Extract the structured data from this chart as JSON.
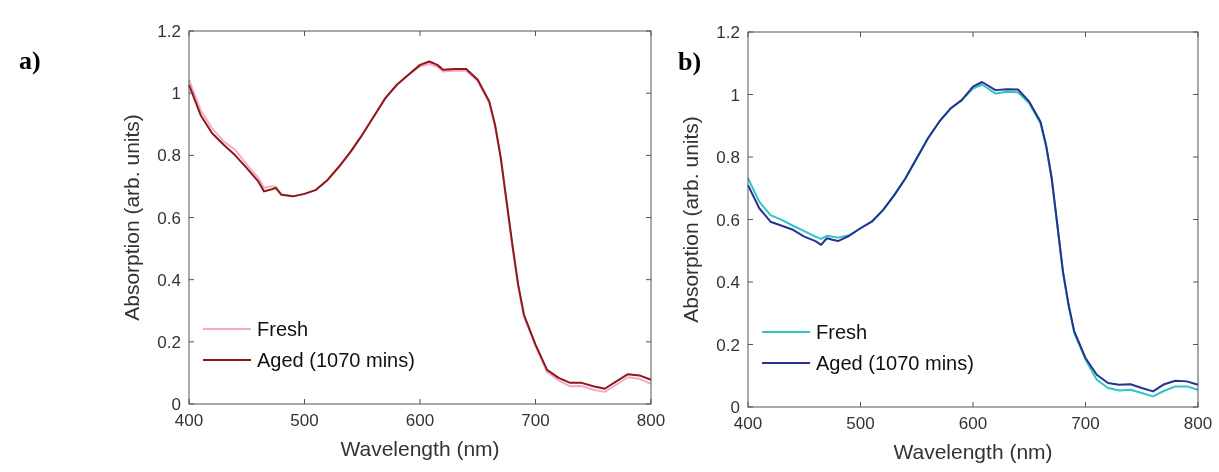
{
  "chart_data": [
    {
      "type": "line",
      "annotations": [
        "a)"
      ],
      "xlabel": "Wavelength (nm)",
      "ylabel": "Absorption (arb. units)",
      "xlim": [
        400,
        800
      ],
      "ylim": [
        0,
        1.2
      ],
      "xticks": [
        400,
        500,
        600,
        700,
        800
      ],
      "yticks": [
        0,
        0.2,
        0.4,
        0.6,
        0.8,
        1,
        1.2
      ],
      "grid": false,
      "legend": "bottom left",
      "line_style": "solid",
      "marker": "none",
      "x": [
        400,
        410,
        420,
        430,
        440,
        450,
        460,
        465,
        470,
        475,
        480,
        490,
        500,
        510,
        520,
        530,
        540,
        550,
        560,
        570,
        580,
        590,
        600,
        608,
        615,
        620,
        630,
        640,
        650,
        660,
        665,
        670,
        675,
        680,
        685,
        690,
        700,
        710,
        720,
        730,
        740,
        750,
        760,
        770,
        780,
        790,
        800
      ],
      "series": [
        {
          "name": "Fresh",
          "color": "#f7a8c4",
          "values": [
            1.043,
            0.946,
            0.887,
            0.845,
            0.818,
            0.77,
            0.727,
            0.695,
            0.7,
            0.7,
            0.675,
            0.668,
            0.676,
            0.689,
            0.721,
            0.764,
            0.812,
            0.866,
            0.925,
            0.984,
            1.027,
            1.059,
            1.086,
            1.094,
            1.085,
            1.07,
            1.072,
            1.072,
            1.038,
            0.968,
            0.893,
            0.786,
            0.646,
            0.507,
            0.379,
            0.282,
            0.186,
            0.103,
            0.076,
            0.057,
            0.058,
            0.046,
            0.039,
            0.062,
            0.086,
            0.081,
            0.065
          ]
        },
        {
          "name": "Aged (1070 mins)",
          "color": "#8b1a1a",
          "values": [
            1.027,
            0.93,
            0.871,
            0.834,
            0.8,
            0.759,
            0.716,
            0.684,
            0.689,
            0.695,
            0.673,
            0.668,
            0.676,
            0.689,
            0.721,
            0.764,
            0.812,
            0.866,
            0.925,
            0.984,
            1.027,
            1.059,
            1.091,
            1.102,
            1.091,
            1.075,
            1.078,
            1.078,
            1.043,
            0.973,
            0.898,
            0.791,
            0.651,
            0.512,
            0.384,
            0.287,
            0.191,
            0.11,
            0.084,
            0.068,
            0.068,
            0.057,
            0.049,
            0.073,
            0.096,
            0.092,
            0.078
          ]
        }
      ]
    },
    {
      "type": "line",
      "annotations": [
        "b)"
      ],
      "xlabel": "Wavelength (nm)",
      "ylabel": "Absorption (arb. units)",
      "xlim": [
        400,
        800
      ],
      "ylim": [
        0,
        1.2
      ],
      "xticks": [
        400,
        500,
        600,
        700,
        800
      ],
      "yticks": [
        0,
        0.2,
        0.4,
        0.6,
        0.8,
        1,
        1.2
      ],
      "grid": false,
      "legend": "bottom left",
      "line_style": "solid",
      "marker": "none",
      "x": [
        400,
        410,
        420,
        430,
        440,
        450,
        460,
        465,
        470,
        475,
        480,
        490,
        500,
        510,
        520,
        530,
        540,
        550,
        560,
        570,
        580,
        590,
        600,
        608,
        620,
        630,
        640,
        650,
        660,
        665,
        670,
        675,
        680,
        685,
        690,
        700,
        710,
        720,
        730,
        740,
        750,
        760,
        770,
        780,
        790,
        800
      ],
      "series": [
        {
          "name": "Fresh",
          "color": "#2ec4c9",
          "values": [
            0.732,
            0.657,
            0.614,
            0.599,
            0.58,
            0.563,
            0.545,
            0.538,
            0.548,
            0.545,
            0.542,
            0.55,
            0.572,
            0.593,
            0.63,
            0.678,
            0.732,
            0.796,
            0.86,
            0.913,
            0.955,
            0.982,
            1.019,
            1.032,
            1.003,
            1.009,
            1.007,
            0.972,
            0.908,
            0.833,
            0.727,
            0.578,
            0.428,
            0.322,
            0.237,
            0.152,
            0.087,
            0.061,
            0.053,
            0.055,
            0.045,
            0.034,
            0.052,
            0.066,
            0.066,
            0.055
          ]
        },
        {
          "name": "Aged (1070 mins)",
          "color": "#27318f",
          "values": [
            0.71,
            0.636,
            0.593,
            0.58,
            0.567,
            0.545,
            0.531,
            0.519,
            0.54,
            0.535,
            0.531,
            0.548,
            0.572,
            0.593,
            0.63,
            0.678,
            0.732,
            0.796,
            0.86,
            0.913,
            0.955,
            0.982,
            1.025,
            1.04,
            1.014,
            1.017,
            1.016,
            0.977,
            0.913,
            0.838,
            0.732,
            0.583,
            0.433,
            0.327,
            0.242,
            0.157,
            0.103,
            0.077,
            0.071,
            0.073,
            0.061,
            0.05,
            0.073,
            0.084,
            0.082,
            0.071
          ]
        }
      ]
    }
  ]
}
